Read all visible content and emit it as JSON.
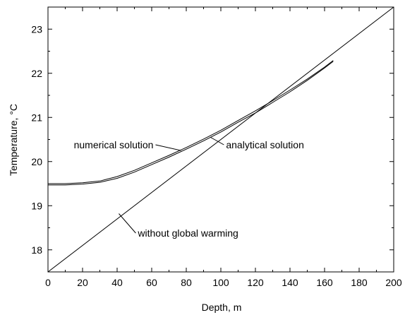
{
  "chart_data": {
    "type": "line",
    "title": "",
    "xlabel": "Depth, m",
    "ylabel": "Temperature, °C",
    "xlim": [
      0,
      200
    ],
    "ylim": [
      17.5,
      23.5
    ],
    "xticks": [
      0,
      20,
      40,
      60,
      80,
      100,
      120,
      140,
      160,
      180,
      200
    ],
    "yticks": [
      18,
      19,
      20,
      21,
      22,
      23
    ],
    "grid": false,
    "legend": "none",
    "series": [
      {
        "key": "numerical",
        "color": "#000000",
        "x": [
          0,
          10,
          20,
          30,
          40,
          50,
          60,
          70,
          80,
          90,
          100,
          110,
          120,
          130,
          140,
          150,
          160,
          165
        ],
        "y": [
          19.5,
          19.5,
          19.52,
          19.56,
          19.66,
          19.8,
          19.97,
          20.14,
          20.32,
          20.51,
          20.71,
          20.93,
          21.15,
          21.38,
          21.62,
          21.87,
          22.14,
          22.29
        ]
      },
      {
        "key": "analytical",
        "color": "#000000",
        "x": [
          0,
          10,
          20,
          30,
          40,
          50,
          60,
          70,
          80,
          90,
          100,
          110,
          120,
          130,
          140,
          150,
          160,
          165
        ],
        "y": [
          19.47,
          19.47,
          19.49,
          19.53,
          19.62,
          19.76,
          19.93,
          20.1,
          20.28,
          20.47,
          20.67,
          20.89,
          21.1,
          21.34,
          21.58,
          21.84,
          22.12,
          22.27
        ]
      },
      {
        "key": "baseline",
        "color": "#000000",
        "x": [
          0,
          200
        ],
        "y": [
          17.5,
          23.5
        ]
      }
    ],
    "annotations": [
      {
        "text": "numerical solution",
        "x": 61,
        "y": 20.3,
        "target_x": 77,
        "target_y": 20.25
      },
      {
        "text": "analytical solution",
        "x": 103,
        "y": 20.3,
        "target_x": 94,
        "target_y": 20.55
      },
      {
        "text": "without global warming",
        "x": 52,
        "y": 18.3,
        "target_x": 41,
        "target_y": 18.82
      }
    ]
  }
}
